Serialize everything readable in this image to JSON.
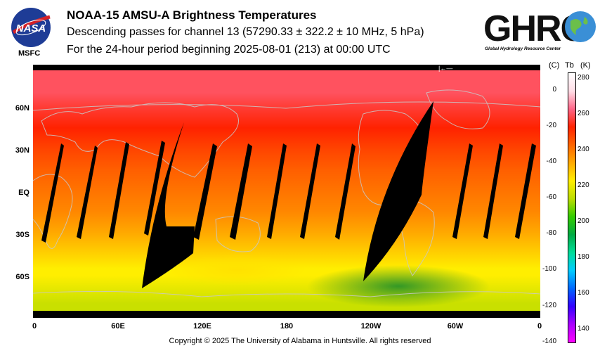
{
  "header": {
    "title": "NOAA-15 AMSU-A Brightness Temperatures",
    "subtitle": "Descending passes for channel 13 (57290.33 ± 322.2 ± 10 MHz, 5 hPa)",
    "period": "For the 24-hour period beginning 2025-08-01 (213) at 00:00 UTC"
  },
  "logos": {
    "nasa_text": "NASA",
    "nasa_sub": "MSFC",
    "ghrc_text": "GHRC",
    "ghrc_sub": "Global Hydrology Resource Center"
  },
  "chart_data": {
    "type": "heatmap",
    "projection": "equirectangular",
    "x_ticks": [
      "0",
      "60E",
      "120E",
      "180",
      "120W",
      "60W",
      "0"
    ],
    "y_ticks": [
      "60N",
      "30N",
      "EQ",
      "30S",
      "60S"
    ],
    "y_tick_values": [
      60,
      30,
      0,
      -30,
      -60
    ],
    "lat_band_temperature_K": {
      "lat": [
        85,
        70,
        60,
        45,
        30,
        15,
        0,
        -15,
        -30,
        -40,
        -50,
        -55,
        -60,
        -65,
        -70,
        -75,
        -80
      ],
      "tb": [
        260,
        260,
        257,
        253,
        248,
        244,
        241,
        238,
        233,
        229,
        225,
        223,
        223,
        221,
        219,
        217,
        215
      ]
    },
    "missing_data_gaps": "black diagonal swaths between descending passes",
    "colorbar": {
      "header_celsius": "(C)",
      "header_tb": "Tb",
      "header_kelvin": "(K)",
      "celsius_ticks": [
        "0",
        "-20",
        "-40",
        "-60",
        "-80",
        "-100",
        "-120",
        "-140"
      ],
      "kelvin_ticks": [
        "280",
        "260",
        "240",
        "220",
        "200",
        "180",
        "160",
        "140"
      ],
      "kelvin_range": [
        133,
        283
      ],
      "colors": [
        "#ff00ff",
        "#aa00ff",
        "#3300ff",
        "#0066ff",
        "#00ccff",
        "#00dd99",
        "#00aa44",
        "#33cc00",
        "#bbdd00",
        "#ffee00",
        "#ffaa00",
        "#ff6600",
        "#ff2200",
        "#ff6688",
        "#ffdde6",
        "#ffffff"
      ]
    }
  },
  "footer": {
    "copyright": "Copyright © 2025 The University of Alabama in Huntsville.  All rights reserved"
  }
}
